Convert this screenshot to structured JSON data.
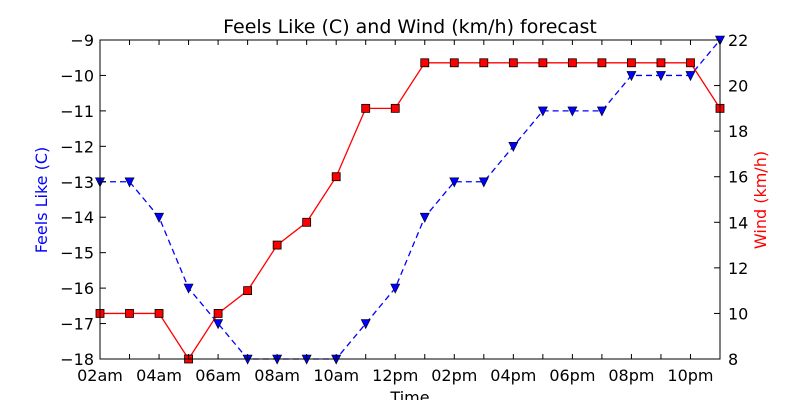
{
  "chart_data": {
    "type": "line",
    "title": "Feels Like (C) and Wind (km/h) forecast",
    "xlabel": "Time",
    "x_ticks": [
      "02am",
      "04am",
      "06am",
      "08am",
      "10am",
      "12pm",
      "02pm",
      "04pm",
      "06pm",
      "08pm",
      "10pm"
    ],
    "x_hours": [
      "02am",
      "03am",
      "04am",
      "05am",
      "06am",
      "07am",
      "08am",
      "09am",
      "10am",
      "11am",
      "12pm",
      "01pm",
      "02pm",
      "03pm",
      "04pm",
      "05pm",
      "06pm",
      "07pm",
      "08pm",
      "09pm",
      "10pm",
      "11pm"
    ],
    "y_left": {
      "label": "Feels Like (C)",
      "color": "#0000ff",
      "ylim": [
        -18,
        -9
      ],
      "ticks": [
        "−18",
        "−17",
        "−16",
        "−15",
        "−14",
        "−13",
        "−12",
        "−11",
        "−10",
        "−9"
      ]
    },
    "y_right": {
      "label": "Wind (km/h)",
      "color": "#ff0000",
      "ylim": [
        8,
        22
      ],
      "ticks": [
        "8",
        "10",
        "12",
        "14",
        "16",
        "18",
        "20",
        "22"
      ]
    },
    "series": [
      {
        "axis": "left",
        "color": "#0000ff",
        "marker": "triangle-down",
        "line_style": "dashed",
        "values": [
          -13,
          -13,
          -14,
          -16,
          -17,
          -18,
          -18,
          -18,
          -18,
          -17,
          -16,
          -14,
          -13,
          -13,
          -12,
          -11,
          -11,
          -11,
          -10,
          -10,
          -10,
          -9
        ]
      },
      {
        "axis": "right",
        "color": "#ff0000",
        "marker": "square",
        "line_style": "solid",
        "values": [
          10,
          10,
          10,
          8,
          10,
          11,
          13,
          14,
          16,
          19,
          19,
          21,
          21,
          21,
          21,
          21,
          21,
          21,
          21,
          21,
          21,
          19
        ]
      }
    ],
    "grid": false,
    "legend": "none"
  }
}
